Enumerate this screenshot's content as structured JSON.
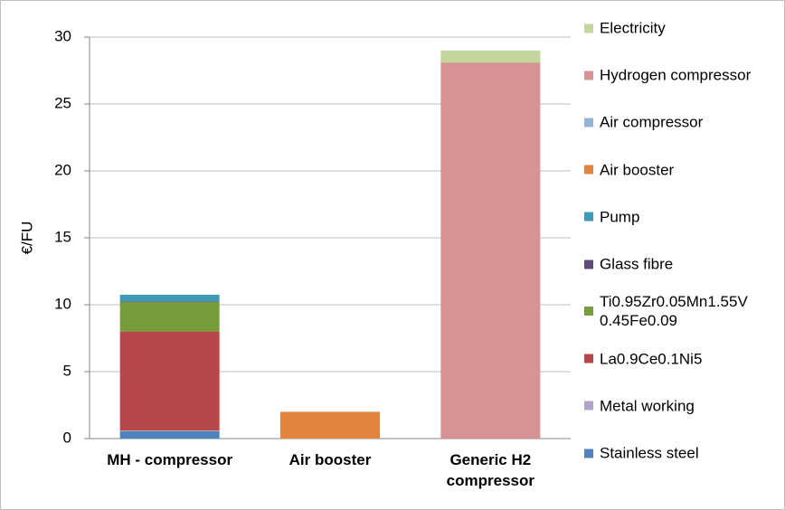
{
  "chart_data": {
    "type": "stacked_bar",
    "ylabel": "€/FU",
    "categories": [
      "MH - compressor",
      "Air booster",
      "Generic H2 compressor"
    ],
    "series": [
      {
        "name": "Stainless steel",
        "color": "#4f81bd",
        "values": [
          0.55,
          0,
          0
        ]
      },
      {
        "name": "Metal working",
        "color": "#b3a2c7",
        "values": [
          0.05,
          0,
          0
        ]
      },
      {
        "name": "La0.9Ce0.1Ni5",
        "color": "#b7474a",
        "values": [
          7.4,
          0,
          0
        ]
      },
      {
        "name": "Ti0.95Zr0.05Mn1.55V0.45Fe0.09",
        "color": "#789b3c",
        "values": [
          2.2,
          0,
          0
        ]
      },
      {
        "name": "Glass fibre",
        "color": "#604a7b",
        "values": [
          0.05,
          0,
          0
        ]
      },
      {
        "name": "Pump",
        "color": "#3e9bb6",
        "values": [
          0.5,
          0,
          0
        ]
      },
      {
        "name": "Air booster",
        "color": "#e2843f",
        "values": [
          0,
          2.0,
          0
        ]
      },
      {
        "name": "Air compressor",
        "color": "#95b3d7",
        "values": [
          0,
          0,
          0
        ]
      },
      {
        "name": "Hydrogen compressor",
        "color": "#d59493",
        "values": [
          0,
          0,
          28.1
        ]
      },
      {
        "name": "Electricity",
        "color": "#c3d69b",
        "values": [
          0,
          0,
          0.9
        ]
      }
    ],
    "ylim": [
      0,
      30
    ],
    "yticks": [
      0,
      5,
      10,
      15,
      20,
      25,
      30
    ],
    "grid": true,
    "legend": "right"
  }
}
